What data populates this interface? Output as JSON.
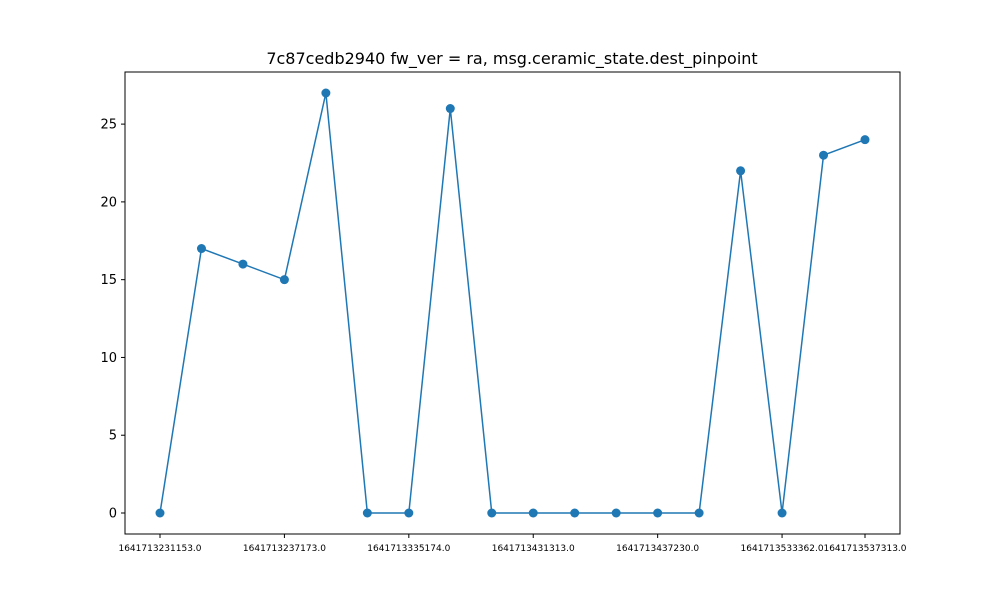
{
  "chart_data": {
    "type": "line",
    "title": "7c87cedb2940 fw_ver = ra, msg.ceramic_state.dest_pinpoint",
    "xlabel": "",
    "ylabel": "",
    "ylim": [
      -1.35,
      28.35
    ],
    "yticks": [
      0,
      5,
      10,
      15,
      20,
      25
    ],
    "x_tick_labels": [
      {
        "index": 0,
        "label": "1641713231153.0"
      },
      {
        "index": 3,
        "label": "1641713237173.0"
      },
      {
        "index": 6,
        "label": "1641713335174.0"
      },
      {
        "index": 9,
        "label": "1641713431313.0"
      },
      {
        "index": 12,
        "label": "1641713437230.0"
      },
      {
        "index": 15,
        "label": "1641713533362.0"
      },
      {
        "index": 17,
        "label": "1641713537313.0"
      }
    ],
    "grid": false,
    "series": [
      {
        "color": "#1f77b4",
        "marker": "circle",
        "values": [
          0,
          17,
          16,
          15,
          27,
          0,
          0,
          26,
          0,
          0,
          0,
          0,
          0,
          0,
          22,
          0,
          23,
          24
        ]
      }
    ]
  }
}
